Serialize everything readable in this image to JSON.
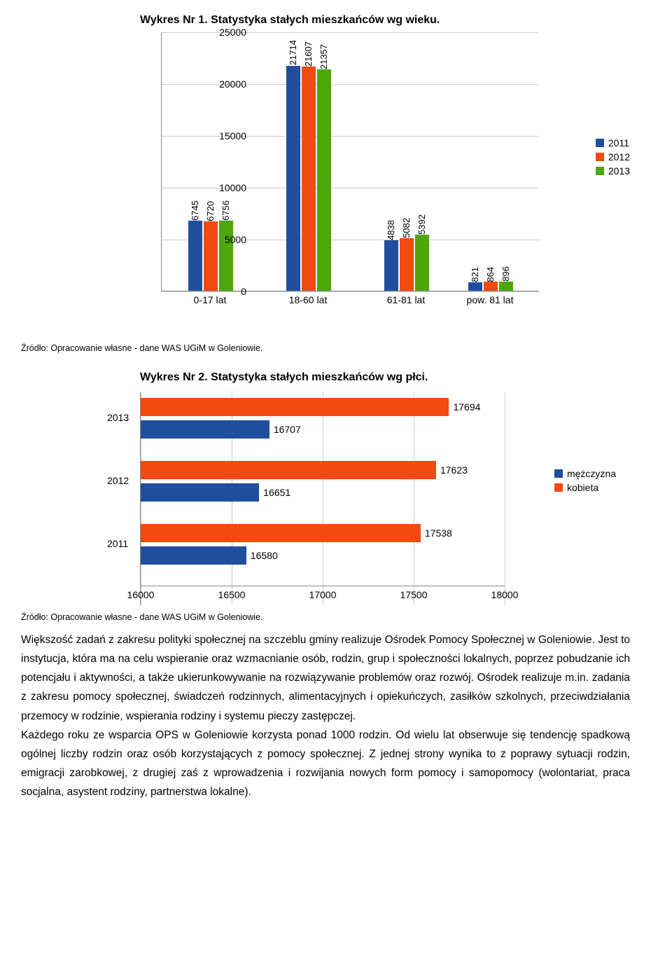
{
  "chart1": {
    "title": "Wykres Nr 1. Statystyka stałych mieszkańców wg wieku.",
    "ymax": 25000,
    "yticks": [
      0,
      5000,
      10000,
      15000,
      20000,
      25000
    ],
    "categories": [
      "0-17 lat",
      "18-60 lat",
      "61-81 lat",
      "pow. 81 lat"
    ],
    "series": [
      {
        "name": "2011",
        "color": "#1f4e9c",
        "values": [
          6745,
          21714,
          4838,
          821
        ]
      },
      {
        "name": "2012",
        "color": "#f24a0f",
        "values": [
          6720,
          21607,
          5082,
          864
        ]
      },
      {
        "name": "2013",
        "color": "#4ea60a",
        "values": [
          6756,
          21357,
          5392,
          896
        ]
      }
    ],
    "source": "Źródło: Opracowanie własne - dane WAS UGiM w Goleniowie."
  },
  "chart2": {
    "title": "Wykres Nr 2. Statystyka stałych mieszkańców wg płci.",
    "xmin": 16000,
    "xmax": 18000,
    "xticks": [
      16000,
      16500,
      17000,
      17500,
      18000
    ],
    "categories": [
      "2013",
      "2012",
      "2011"
    ],
    "series": [
      {
        "name": "mężczyzna",
        "color": "#1f4e9c"
      },
      {
        "name": "kobieta",
        "color": "#f24a0f"
      }
    ],
    "data": {
      "2013": {
        "kobieta": 17694,
        "mężczyzna": 16707
      },
      "2012": {
        "kobieta": 17623,
        "mężczyzna": 16651
      },
      "2011": {
        "kobieta": 17538,
        "mężczyzna": 16580
      }
    },
    "source": "Źródło: Opracowanie własne - dane WAS UGiM w Goleniowie."
  },
  "paragraphs": [
    "Większość zadań z zakresu polityki społecznej na szczeblu gminy realizuje Ośrodek Pomocy Społecznej w Goleniowie. Jest to instytucja, która ma na celu wspieranie oraz wzmacnianie osób, rodzin, grup i społeczności lokalnych, poprzez pobudzanie ich potencjału i aktywności, a także ukierunkowywanie na rozwiązywanie problemów oraz rozwój. Ośrodek realizuje m.in. zadania z zakresu pomocy społecznej, świadczeń rodzinnych, alimentacyjnych i opiekuńczych, zasiłków szkolnych, przeciwdziałania przemocy w rodzinie, wspierania rodziny i systemu pieczy zastępczej.",
    "Każdego roku ze wsparcia OPS w Goleniowie korzysta ponad 1000 rodzin. Od wielu lat obserwuje się tendencję spadkową ogólnej liczby rodzin oraz osób korzystających z pomocy społecznej. Z jednej strony wynika to z poprawy sytuacji rodzin, emigracji zarobkowej, z drugiej zaś z wprowadzenia i rozwijania nowych form pomocy i samopomocy (wolontariat, praca socjalna, asystent rodziny, partnerstwa lokalne)."
  ]
}
